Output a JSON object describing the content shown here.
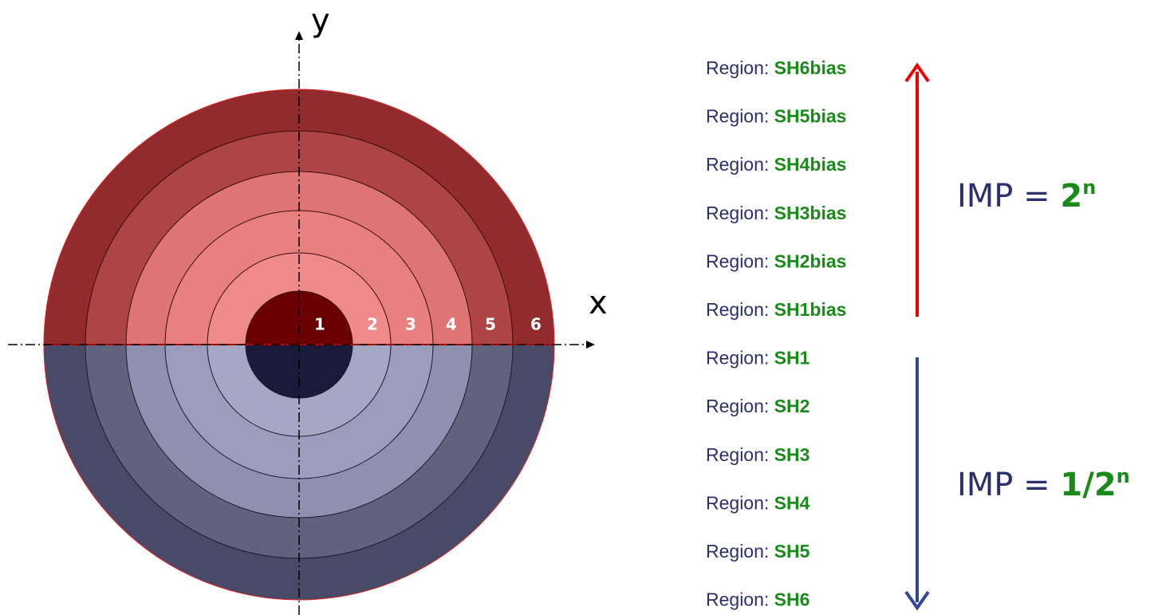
{
  "axes": {
    "x": "x",
    "y": "y"
  },
  "rings": [
    "1",
    "2",
    "3",
    "4",
    "5",
    "6"
  ],
  "regions": [
    {
      "prefix": "Region:",
      "name": "SH6bias"
    },
    {
      "prefix": "Region:",
      "name": "SH5bias"
    },
    {
      "prefix": "Region:",
      "name": "SH4bias"
    },
    {
      "prefix": "Region:",
      "name": "SH3bias"
    },
    {
      "prefix": "Region:",
      "name": "SH2bias"
    },
    {
      "prefix": "Region:",
      "name": "SH1bias"
    },
    {
      "prefix": "Region:",
      "name": "SH1"
    },
    {
      "prefix": "Region:",
      "name": "SH2"
    },
    {
      "prefix": "Region:",
      "name": "SH3"
    },
    {
      "prefix": "Region:",
      "name": "SH4"
    },
    {
      "prefix": "Region:",
      "name": "SH5"
    },
    {
      "prefix": "Region:",
      "name": "SH6"
    }
  ],
  "formulas": [
    {
      "text": "IMP =",
      "value": "2",
      "exponent": "n"
    },
    {
      "text": "IMP =",
      "value": "1/2",
      "exponent": "n"
    }
  ]
}
